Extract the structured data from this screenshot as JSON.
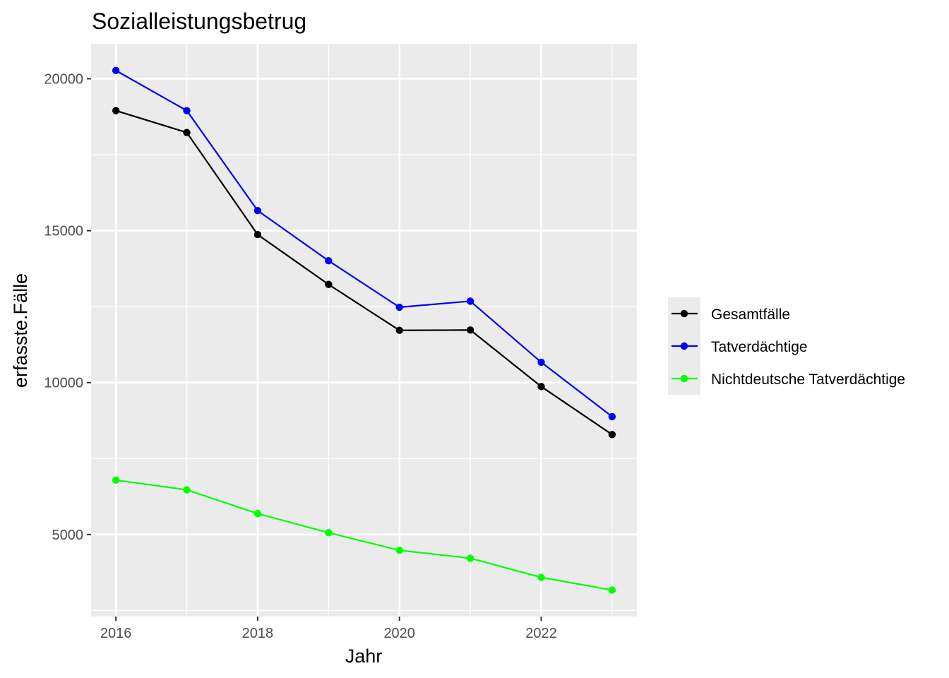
{
  "chart_data": {
    "type": "line",
    "title": "Sozialleistungsbetrug",
    "xlabel": "Jahr",
    "ylabel": "erfasste.Fälle",
    "x": [
      2016,
      2017,
      2018,
      2019,
      2020,
      2021,
      2022,
      2023
    ],
    "xticks": [
      2016,
      2018,
      2020,
      2022
    ],
    "yticks": [
      5000,
      10000,
      15000,
      20000
    ],
    "xlim": [
      2015.65,
      2023.35
    ],
    "ylim": [
      2300,
      21150
    ],
    "grid": true,
    "legend_position": "right",
    "series": [
      {
        "name": "Gesamtfälle",
        "color": "#000000",
        "values": [
          18950,
          18230,
          14870,
          13230,
          11720,
          11730,
          9870,
          8290
        ]
      },
      {
        "name": "Tatverdächtige",
        "color": "#0000ff",
        "values": [
          20270,
          18950,
          15660,
          14010,
          12480,
          12680,
          10670,
          8880
        ]
      },
      {
        "name": "Nichtdeutsche Tatverdächtige",
        "color": "#00ff00",
        "values": [
          6790,
          6470,
          5690,
          5060,
          4480,
          4220,
          3590,
          3170
        ]
      }
    ]
  }
}
